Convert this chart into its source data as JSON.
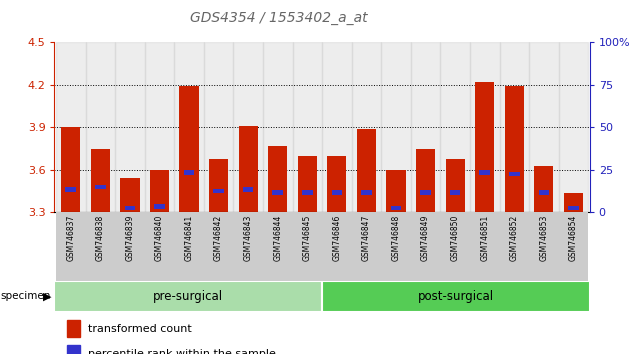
{
  "title": "GDS4354 / 1553402_a_at",
  "categories": [
    "GSM746837",
    "GSM746838",
    "GSM746839",
    "GSM746840",
    "GSM746841",
    "GSM746842",
    "GSM746843",
    "GSM746844",
    "GSM746845",
    "GSM746846",
    "GSM746847",
    "GSM746848",
    "GSM746849",
    "GSM746850",
    "GSM746851",
    "GSM746852",
    "GSM746853",
    "GSM746854"
  ],
  "red_values": [
    3.9,
    3.75,
    3.54,
    3.6,
    4.19,
    3.68,
    3.91,
    3.77,
    3.7,
    3.7,
    3.89,
    3.6,
    3.75,
    3.68,
    4.22,
    4.19,
    3.63,
    3.44
  ],
  "blue_values": [
    3.46,
    3.48,
    3.33,
    3.34,
    3.58,
    3.45,
    3.46,
    3.44,
    3.44,
    3.44,
    3.44,
    3.33,
    3.44,
    3.44,
    3.58,
    3.57,
    3.44,
    3.33
  ],
  "pre_surgical_count": 9,
  "ylim_left": [
    3.3,
    4.5
  ],
  "ylim_right": [
    0,
    100
  ],
  "yticks_left": [
    3.3,
    3.6,
    3.9,
    4.2,
    4.5
  ],
  "yticks_right": [
    0,
    25,
    50,
    75,
    100
  ],
  "grid_lines": [
    3.6,
    3.9,
    4.2
  ],
  "bar_color": "#cc2200",
  "blue_color": "#3333cc",
  "pre_surgical_color": "#aaddaa",
  "post_surgical_color": "#55cc55",
  "title_color": "#666666",
  "axis_color_left": "#cc2200",
  "axis_color_right": "#2222bb",
  "bar_width": 0.65,
  "legend_red_label": "transformed count",
  "legend_blue_label": "percentile rank within the sample",
  "specimen_label": "specimen"
}
